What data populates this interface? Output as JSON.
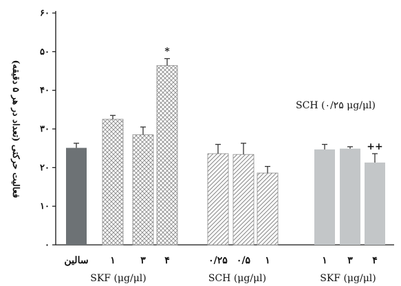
{
  "chart_data": {
    "type": "bar",
    "ylabel": "فعالیت حرکتی (تعداد در هر ۵ دقیقه)",
    "ylim": [
      0,
      60
    ],
    "y_ticks": [
      {
        "value": 0,
        "label": "۰"
      },
      {
        "value": 10,
        "label": "۱۰"
      },
      {
        "value": 20,
        "label": "۲۰"
      },
      {
        "value": 30,
        "label": "۳۰"
      },
      {
        "value": 40,
        "label": "۴۰"
      },
      {
        "value": 50,
        "label": "۵۰"
      },
      {
        "value": 60,
        "label": "۶۰"
      }
    ],
    "groups": [
      {
        "label": "SKF (μg/μl)"
      },
      {
        "label": "SCH (μg/μl)"
      },
      {
        "label": "SKF (μg/μl)"
      }
    ],
    "bars": [
      {
        "category": "سالین",
        "value": 25.1,
        "error": 1.2,
        "group": 0,
        "pattern": "solid",
        "color": "#6d7275"
      },
      {
        "category": "۱",
        "value": 32.5,
        "error": 1.0,
        "group": 0,
        "pattern": "crosshatch"
      },
      {
        "category": "۳",
        "value": 28.5,
        "error": 2.0,
        "group": 0,
        "pattern": "crosshatch"
      },
      {
        "category": "۴",
        "value": 46.4,
        "error": 1.8,
        "group": 0,
        "pattern": "crosshatch",
        "sig": "*"
      },
      {
        "category": "۰/۲۵",
        "value": 23.6,
        "error": 2.4,
        "group": 1,
        "pattern": "diagonal"
      },
      {
        "category": "۰/۵",
        "value": 23.4,
        "error": 2.9,
        "group": 1,
        "pattern": "diagonal"
      },
      {
        "category": "۱",
        "value": 18.6,
        "error": 1.7,
        "group": 1,
        "pattern": "diagonal"
      },
      {
        "category": "۱",
        "value": 24.7,
        "error": 1.3,
        "group": 2,
        "pattern": "solid",
        "color": "#c3c6c8"
      },
      {
        "category": "۳",
        "value": 24.9,
        "error": 0.5,
        "group": 2,
        "pattern": "solid",
        "color": "#c3c6c8"
      },
      {
        "category": "۴",
        "value": 21.3,
        "error": 2.3,
        "group": 2,
        "pattern": "solid",
        "color": "#c3c6c8",
        "sig": "++"
      }
    ],
    "annotations": [
      {
        "text": "SCH (۰/۲۵ μg/μl)"
      }
    ],
    "grid": false,
    "legend": "none"
  }
}
